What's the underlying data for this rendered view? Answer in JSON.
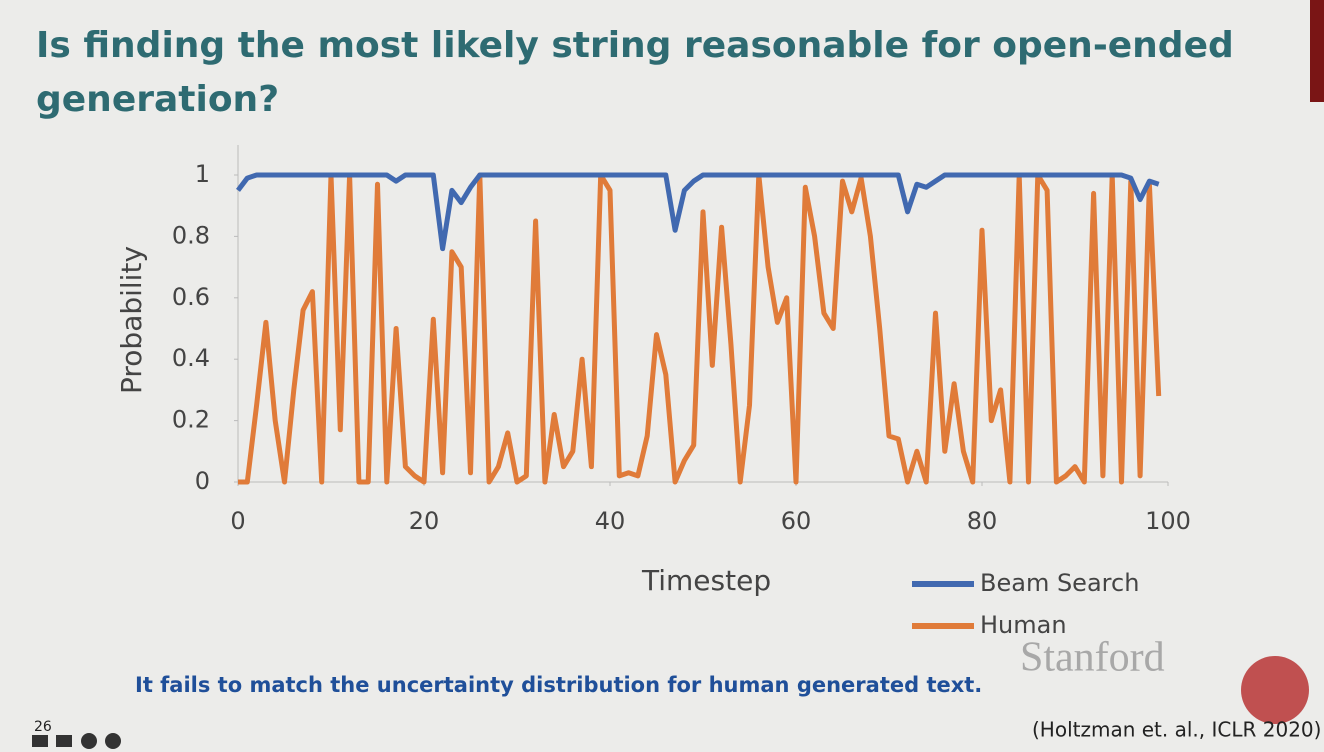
{
  "slide": {
    "title": "Is finding the most likely string reasonable for open-ended generation?",
    "caption": "It fails to match the uncertainty distribution for human generated text.",
    "logo": "Stanford",
    "citation": "(Holtzman et. al., ICLR 2020)",
    "page_number": "26"
  },
  "chart_data": {
    "type": "line",
    "xlabel": "Timestep",
    "ylabel": "Probability",
    "x": [
      0,
      1,
      2,
      3,
      4,
      5,
      6,
      7,
      8,
      9,
      10,
      11,
      12,
      13,
      14,
      15,
      16,
      17,
      18,
      19,
      20,
      21,
      22,
      23,
      24,
      25,
      26,
      27,
      28,
      29,
      30,
      31,
      32,
      33,
      34,
      35,
      36,
      37,
      38,
      39,
      40,
      41,
      42,
      43,
      44,
      45,
      46,
      47,
      48,
      49,
      50,
      51,
      52,
      53,
      54,
      55,
      56,
      57,
      58,
      59,
      60,
      61,
      62,
      63,
      64,
      65,
      66,
      67,
      68,
      69,
      70,
      71,
      72,
      73,
      74,
      75,
      76,
      77,
      78,
      79,
      80,
      81,
      82,
      83,
      84,
      85,
      86,
      87,
      88,
      89,
      90,
      91,
      92,
      93,
      94,
      95,
      96,
      97,
      98,
      99
    ],
    "series": [
      {
        "name": "Beam Search",
        "color": "#4169b0",
        "values": [
          0.95,
          0.99,
          1,
          1,
          1,
          1,
          1,
          1,
          1,
          1,
          1,
          1,
          1,
          1,
          1,
          1,
          1,
          0.98,
          1,
          1,
          1,
          1,
          0.76,
          0.95,
          0.91,
          0.96,
          1,
          1,
          1,
          1,
          1,
          1,
          1,
          1,
          1,
          1,
          1,
          1,
          1,
          1,
          1,
          1,
          1,
          1,
          1,
          1,
          1,
          0.82,
          0.95,
          0.98,
          1,
          1,
          1,
          1,
          1,
          1,
          1,
          1,
          1,
          1,
          1,
          1,
          1,
          1,
          1,
          1,
          1,
          1,
          1,
          1,
          1,
          1,
          0.88,
          0.97,
          0.96,
          0.98,
          1,
          1,
          1,
          1,
          1,
          1,
          1,
          1,
          1,
          1,
          1,
          1,
          1,
          1,
          1,
          1,
          1,
          1,
          1,
          1,
          0.99,
          0.92,
          0.98,
          0.97
        ]
      },
      {
        "name": "Human",
        "color": "#e07b39",
        "values": [
          0,
          0,
          0.25,
          0.52,
          0.2,
          0,
          0.3,
          0.56,
          0.62,
          0,
          1,
          0.17,
          1,
          0,
          0,
          0.97,
          0,
          0.5,
          0.05,
          0.02,
          0,
          0.53,
          0.03,
          0.75,
          0.7,
          0.03,
          1,
          0,
          0.05,
          0.16,
          0,
          0.02,
          0.85,
          0,
          0.22,
          0.05,
          0.1,
          0.4,
          0.05,
          1,
          0.95,
          0.02,
          0.03,
          0.02,
          0.15,
          0.48,
          0.35,
          0,
          0.07,
          0.12,
          0.88,
          0.38,
          0.83,
          0.45,
          0,
          0.25,
          1,
          0.7,
          0.52,
          0.6,
          0,
          0.96,
          0.8,
          0.55,
          0.5,
          0.98,
          0.88,
          0.99,
          0.8,
          0.5,
          0.15,
          0.14,
          0,
          0.1,
          0,
          0.55,
          0.1,
          0.32,
          0.1,
          0,
          0.82,
          0.2,
          0.3,
          0,
          1,
          0,
          1,
          0.95,
          0,
          0.02,
          0.05,
          0,
          0.94,
          0.02,
          1,
          0,
          0.98,
          0.02,
          0.97,
          0.28
        ]
      }
    ],
    "xlim": [
      0,
      100
    ],
    "xticks": [
      0,
      20,
      40,
      60,
      80,
      100
    ],
    "ylim": [
      0,
      1
    ],
    "yticks": [
      0,
      0.2,
      0.4,
      0.6,
      0.8,
      1
    ],
    "legend": "lower right"
  }
}
